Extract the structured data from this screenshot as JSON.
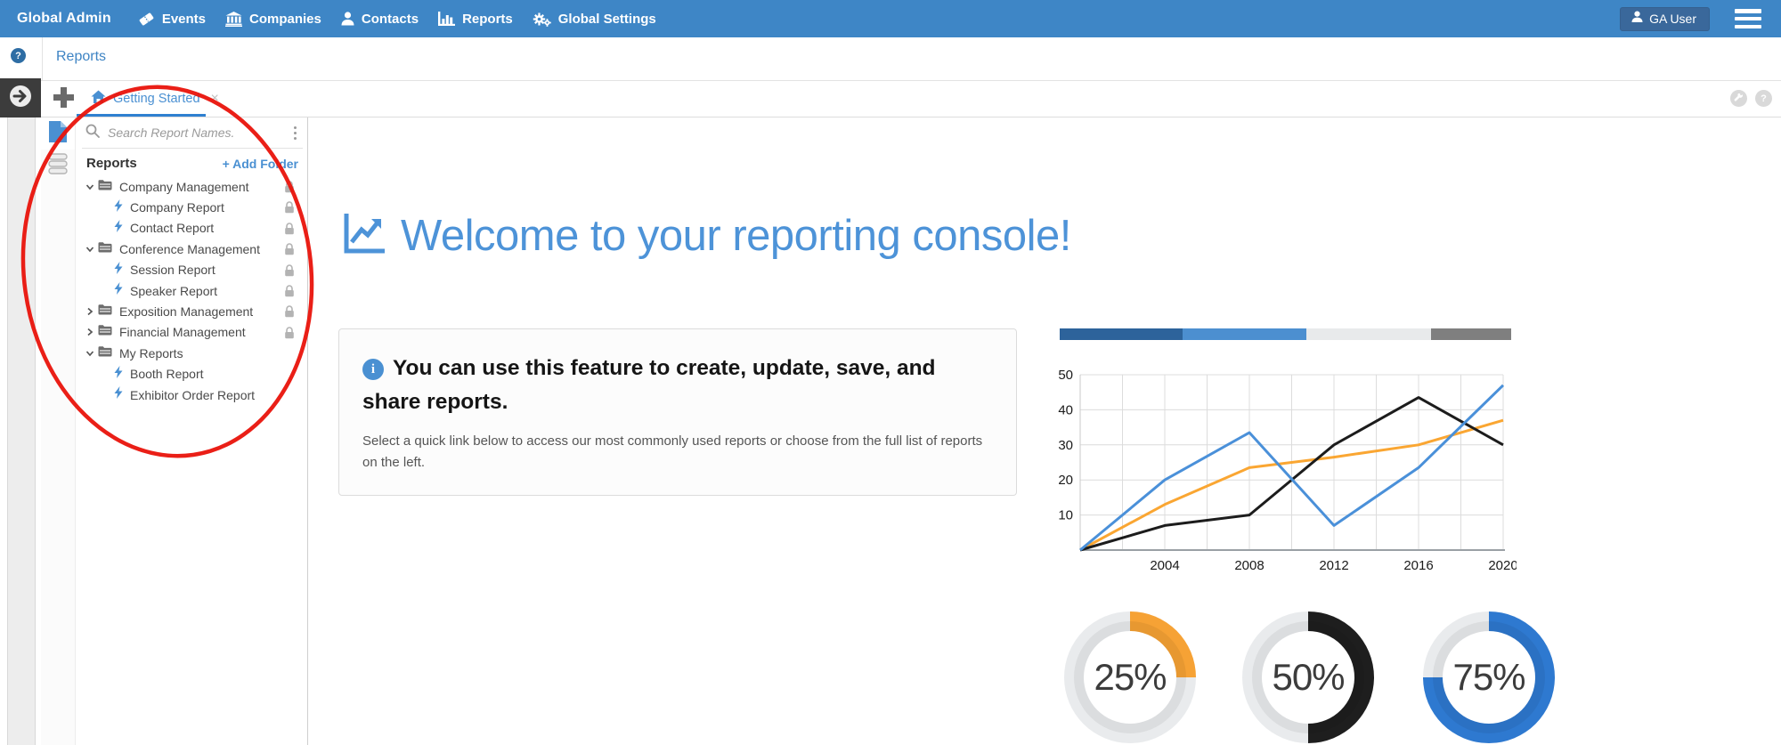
{
  "nav": {
    "brand": "Global Admin",
    "items": [
      {
        "label": "Events",
        "icon": "ticket-icon"
      },
      {
        "label": "Companies",
        "icon": "bank-icon"
      },
      {
        "label": "Contacts",
        "icon": "user-icon"
      },
      {
        "label": "Reports",
        "icon": "bar-chart-icon"
      },
      {
        "label": "Global Settings",
        "icon": "gears-icon"
      }
    ],
    "user_button": "GA User"
  },
  "breadcrumb": {
    "label": "Reports",
    "help_glyph": "?"
  },
  "tabstrip": {
    "active_tab": {
      "label": "Getting Started",
      "close_glyph": "×"
    },
    "actions_help_glyph": "?"
  },
  "sidebar": {
    "search_placeholder": "Search Report Names.",
    "header": "Reports",
    "add_folder": "+ Add Folder",
    "tree": [
      {
        "label": "Company Management",
        "type": "folder",
        "state": "expanded",
        "locked": true
      },
      {
        "label": "Company Report",
        "type": "report",
        "locked": true
      },
      {
        "label": "Contact Report",
        "type": "report",
        "locked": true
      },
      {
        "label": "Conference Management",
        "type": "folder",
        "state": "expanded",
        "locked": true
      },
      {
        "label": "Session Report",
        "type": "report",
        "locked": true
      },
      {
        "label": "Speaker Report",
        "type": "report",
        "locked": true
      },
      {
        "label": "Exposition Management",
        "type": "folder",
        "state": "collapsed",
        "locked": true
      },
      {
        "label": "Financial Management",
        "type": "folder",
        "state": "collapsed",
        "locked": true
      },
      {
        "label": "My Reports",
        "type": "folder",
        "state": "expanded",
        "locked": false
      },
      {
        "label": "Booth Report",
        "type": "report",
        "locked": false
      },
      {
        "label": "Exhibitor Order Report",
        "type": "report",
        "locked": false
      }
    ]
  },
  "main": {
    "welcome": "Welcome to your reporting console!",
    "info_title": "You can use this feature to create, update, save, and share reports.",
    "info_body": "Select a quick link below to access our most commonly used reports or choose from the full list of reports on the left."
  },
  "chart_data": [
    {
      "type": "bar",
      "subtype": "horizontal-stacked-progress",
      "values_pct": [
        27.2,
        27.4,
        27.6,
        17.8
      ],
      "colors": [
        "#2D639B",
        "#4C8FD0",
        "#E8EAEB",
        "#7F7F7F"
      ],
      "title": "",
      "xlabel": "",
      "ylabel": ""
    },
    {
      "type": "line",
      "x": [
        2000,
        2004,
        2008,
        2012,
        2016,
        2020
      ],
      "series": [
        {
          "name": "blue",
          "color": "#4A90D9",
          "values": [
            0,
            20,
            33.5,
            7,
            23.5,
            47
          ]
        },
        {
          "name": "orange",
          "color": "#FAA632",
          "values": [
            0,
            13,
            23.5,
            26.5,
            30,
            37
          ]
        },
        {
          "name": "black",
          "color": "#1C1C1C",
          "values": [
            0,
            7,
            10,
            30,
            43.5,
            30
          ]
        }
      ],
      "draw_order": [
        "orange",
        "black",
        "blue"
      ],
      "xticks": [
        2004,
        2008,
        2012,
        2016,
        2020
      ],
      "yticks": [
        10,
        20,
        30,
        40,
        50
      ],
      "ylim": [
        0,
        50
      ],
      "xlim": [
        2000,
        2020
      ],
      "grid": true,
      "legend": "none",
      "title": "",
      "xlabel": "",
      "ylabel": ""
    },
    {
      "type": "pie",
      "subtype": "donut-gauges",
      "items": [
        {
          "label": "25%",
          "value": 25,
          "color": "#F6A235"
        },
        {
          "label": "50%",
          "value": 50,
          "color": "#1E1E1E"
        },
        {
          "label": "75%",
          "value": 75,
          "color": "#2E79D0"
        }
      ],
      "track_color": "#E9EBED"
    }
  ],
  "annotation": {
    "shape": "ellipse",
    "color": "#E9130B",
    "target": "sidebar report tree"
  }
}
